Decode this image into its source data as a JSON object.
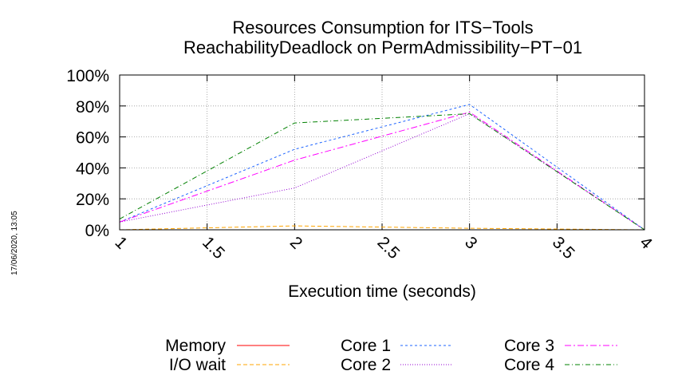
{
  "chart_data": {
    "type": "line",
    "title": "Resources Consumption for ITS−Tools",
    "subtitle": "ReachabilityDeadlock on PermAdmissibility−PT−01",
    "xlabel": "Execution time (seconds)",
    "ylabel": "",
    "x": [
      1,
      2,
      3,
      4
    ],
    "xticks": [
      "1",
      "1.5",
      "2",
      "2.5",
      "3",
      "3.5",
      "4"
    ],
    "xlim": [
      1,
      4
    ],
    "yticks": [
      "0%",
      "20%",
      "40%",
      "60%",
      "80%",
      "100%"
    ],
    "ylim": [
      0,
      100
    ],
    "grid": true,
    "legend_position": "bottom",
    "series": [
      {
        "name": "Memory",
        "color": "#ff0000",
        "dash": "",
        "values": [
          0,
          0,
          0,
          0
        ]
      },
      {
        "name": "I/O wait",
        "color": "#ffa500",
        "dash": "5,3",
        "values": [
          0,
          2.5,
          1,
          0
        ]
      },
      {
        "name": "Core 1",
        "color": "#1e64ff",
        "dash": "3,3",
        "values": [
          5,
          52,
          81,
          0
        ]
      },
      {
        "name": "Core 2",
        "color": "#9400d3",
        "dash": "1,2",
        "values": [
          5,
          27,
          75,
          0
        ]
      },
      {
        "name": "Core 3",
        "color": "#ff00ff",
        "dash": "8,3,2,3",
        "values": [
          5,
          45,
          76,
          0
        ]
      },
      {
        "name": "Core 4",
        "color": "#008000",
        "dash": "6,3,1,3",
        "values": [
          7,
          69,
          75,
          0
        ]
      }
    ]
  },
  "timestamp": "17/06/2020, 13:05"
}
